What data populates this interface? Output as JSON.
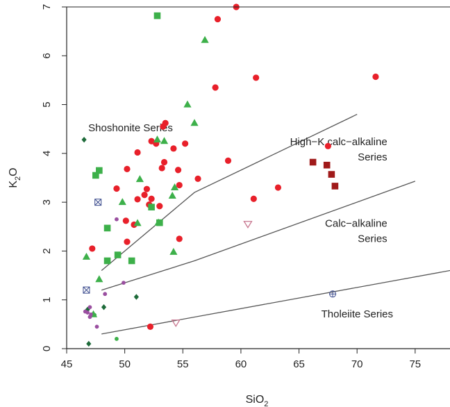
{
  "chart_data": {
    "type": "scatter",
    "xlabel": "SiO",
    "xlabel_sub": "2",
    "ylabel": "K",
    "ylabel_sub": "2",
    "ylabel_tail": "O",
    "xlim": [
      45,
      78
    ],
    "ylim": [
      0,
      7
    ],
    "xticks": [
      45,
      50,
      55,
      60,
      65,
      70,
      75
    ],
    "yticks": [
      0,
      1,
      2,
      3,
      4,
      5,
      6,
      7
    ],
    "grid": false,
    "colors": {
      "red": "#e8202a",
      "green": "#3db04a",
      "darkgreen": "#1e6b3a",
      "purple": "#9a4fa0",
      "darkred": "#a01a1a",
      "pink": "#c87890",
      "navy": "#3a4a8c",
      "line": "#555555"
    },
    "boundary_lines": [
      {
        "points": [
          [
            48,
            1.6
          ],
          [
            56,
            3.2
          ],
          [
            70,
            4.8
          ]
        ]
      },
      {
        "points": [
          [
            48,
            1.2
          ],
          [
            56,
            1.8
          ],
          [
            75,
            3.43
          ]
        ]
      },
      {
        "points": [
          [
            48,
            0.3
          ],
          [
            78,
            1.6
          ]
        ]
      }
    ],
    "region_labels": [
      {
        "lines": [
          "Shoshonite Series"
        ],
        "x": 50.5,
        "y": 4.45,
        "anchor": "middle"
      },
      {
        "lines": [
          "High−K calc−alkaline",
          "Series"
        ],
        "x": 72.6,
        "y": 4.17,
        "anchor": "end"
      },
      {
        "lines": [
          "Calc−alkaline",
          "Series"
        ],
        "x": 72.6,
        "y": 2.5,
        "anchor": "end"
      },
      {
        "lines": [
          "Tholeiite Series"
        ],
        "x": 73.1,
        "y": 0.64,
        "anchor": "end"
      }
    ],
    "series": [
      {
        "marker": "circle",
        "color": "red",
        "points": [
          [
            58,
            6.75
          ],
          [
            59.6,
            7.0
          ],
          [
            57.8,
            5.35
          ],
          [
            61.3,
            5.55
          ],
          [
            71.6,
            5.57
          ],
          [
            53.5,
            4.62
          ],
          [
            52.3,
            4.25
          ],
          [
            52.7,
            4.2
          ],
          [
            53.3,
            4.55
          ],
          [
            54.2,
            4.1
          ],
          [
            55.2,
            4.2
          ],
          [
            51.1,
            4.02
          ],
          [
            53.4,
            3.82
          ],
          [
            53.2,
            3.7
          ],
          [
            50.2,
            3.68
          ],
          [
            54.6,
            3.66
          ],
          [
            58.9,
            3.85
          ],
          [
            51.9,
            3.27
          ],
          [
            51.7,
            3.15
          ],
          [
            52.3,
            3.07
          ],
          [
            51.1,
            3.06
          ],
          [
            49.3,
            3.28
          ],
          [
            54.7,
            3.35
          ],
          [
            56.3,
            3.48
          ],
          [
            63.2,
            3.3
          ],
          [
            61.1,
            3.07
          ],
          [
            53.0,
            2.92
          ],
          [
            52.1,
            2.95
          ],
          [
            50.1,
            2.62
          ],
          [
            50.8,
            2.54
          ],
          [
            54.7,
            2.25
          ],
          [
            50.2,
            2.19
          ],
          [
            47.2,
            2.05
          ],
          [
            52.2,
            0.45
          ],
          [
            67.5,
            4.15
          ]
        ]
      },
      {
        "marker": "square",
        "color": "green",
        "points": [
          [
            52.8,
            6.82
          ],
          [
            47.8,
            3.65
          ],
          [
            47.5,
            3.55
          ],
          [
            52.3,
            2.9
          ],
          [
            48.5,
            2.47
          ],
          [
            49.4,
            1.92
          ],
          [
            48.5,
            1.8
          ],
          [
            50.6,
            1.8
          ],
          [
            53.0,
            2.58
          ]
        ]
      },
      {
        "marker": "triangle",
        "color": "green",
        "points": [
          [
            56.9,
            6.32
          ],
          [
            55.4,
            5.0
          ],
          [
            56.0,
            4.62
          ],
          [
            53.4,
            4.25
          ],
          [
            52.8,
            4.28
          ],
          [
            51.3,
            3.47
          ],
          [
            54.3,
            3.3
          ],
          [
            54.1,
            3.13
          ],
          [
            49.8,
            3.0
          ],
          [
            51.1,
            2.57
          ],
          [
            52.9,
            2.58
          ],
          [
            54.2,
            1.98
          ],
          [
            46.7,
            1.88
          ],
          [
            47.8,
            1.42
          ],
          [
            47.3,
            0.7
          ]
        ]
      },
      {
        "marker": "diamond",
        "color": "darkgreen",
        "points": [
          [
            46.5,
            4.28
          ],
          [
            46.8,
            0.8
          ],
          [
            48.2,
            0.85
          ],
          [
            51.0,
            1.06
          ],
          [
            46.9,
            0.1
          ]
        ]
      },
      {
        "marker": "smalldot",
        "color": "purple",
        "points": [
          [
            49.3,
            2.65
          ],
          [
            48.3,
            1.12
          ],
          [
            49.9,
            1.35
          ],
          [
            47.0,
            0.85
          ],
          [
            46.8,
            0.74
          ],
          [
            47.0,
            0.65
          ],
          [
            47.6,
            0.45
          ],
          [
            46.6,
            0.76
          ],
          [
            47.1,
            0.7
          ]
        ]
      },
      {
        "marker": "smalldot",
        "color": "green",
        "points": [
          [
            49.3,
            0.2
          ],
          [
            47.4,
            0.69
          ]
        ]
      },
      {
        "marker": "square",
        "color": "darkred",
        "points": [
          [
            66.2,
            3.82
          ],
          [
            67.4,
            3.76
          ],
          [
            67.8,
            3.57
          ],
          [
            68.1,
            3.33
          ]
        ]
      },
      {
        "marker": "triangle-down-open",
        "color": "pink",
        "points": [
          [
            60.6,
            2.55
          ],
          [
            54.4,
            0.53
          ]
        ]
      },
      {
        "marker": "crossbox",
        "color": "navy",
        "points": [
          [
            47.7,
            3.0
          ],
          [
            46.7,
            1.2
          ]
        ]
      },
      {
        "marker": "circleplus",
        "color": "navy",
        "points": [
          [
            67.9,
            1.12
          ]
        ]
      }
    ]
  }
}
